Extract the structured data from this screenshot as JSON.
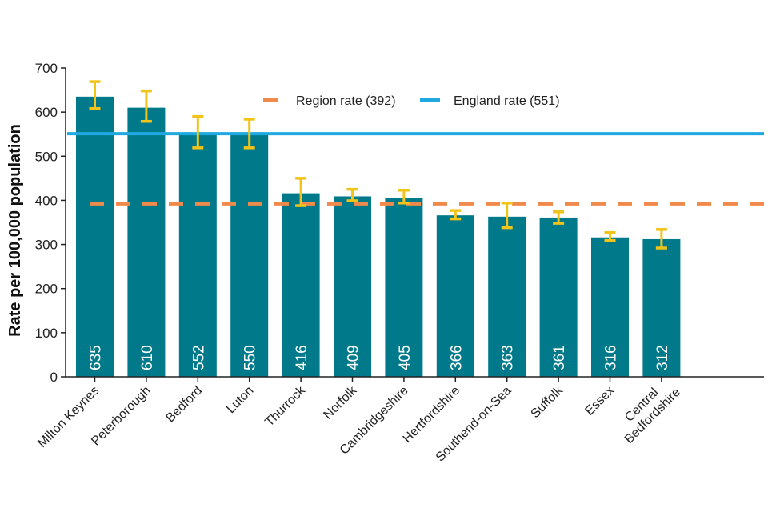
{
  "chart_data": {
    "type": "bar",
    "title": "",
    "xlabel": "",
    "ylabel": "Rate per 100,000 population",
    "ylim": [
      0,
      700
    ],
    "yticks": [
      0,
      100,
      200,
      300,
      400,
      500,
      600,
      700
    ],
    "grid": false,
    "categories": [
      "Milton Keynes",
      "Peterborough",
      "Bedford",
      "Luton",
      "Thurrock",
      "Norfolk",
      "Cambridgeshire",
      "Hertfordshire",
      "Southend-on-Sea",
      "Suffolk",
      "Essex",
      "Central Bedfordshire"
    ],
    "category_label_lines": [
      [
        "Milton Keynes"
      ],
      [
        "Peterborough"
      ],
      [
        "Bedford"
      ],
      [
        "Luton"
      ],
      [
        "Thurrock"
      ],
      [
        "Norfolk"
      ],
      [
        "Cambridgeshire"
      ],
      [
        "Hertfordshire"
      ],
      [
        "Southend-on-Sea"
      ],
      [
        "Suffolk"
      ],
      [
        "Essex"
      ],
      [
        "Central",
        "Bedfordshire"
      ]
    ],
    "values": [
      635,
      610,
      552,
      550,
      416,
      409,
      405,
      366,
      363,
      361,
      316,
      312
    ],
    "data_labels": [
      "635",
      "610",
      "552",
      "550",
      "416",
      "409",
      "405",
      "366",
      "363",
      "361",
      "316",
      "312"
    ],
    "error_bars": {
      "lower": [
        608,
        579,
        519,
        519,
        388,
        399,
        394,
        358,
        338,
        348,
        309,
        292
      ],
      "upper": [
        669,
        648,
        590,
        584,
        450,
        425,
        423,
        377,
        394,
        374,
        327,
        334
      ]
    },
    "reference_lines": [
      {
        "name": "Region rate (392)",
        "value": 392,
        "style": "dashed",
        "color": "#f08a4b"
      },
      {
        "name": "England rate (551)",
        "value": 551,
        "style": "solid",
        "color": "#1fa9e0"
      }
    ],
    "legend": {
      "placement": "top-center",
      "entries": [
        {
          "label": "Region rate (392)",
          "color": "#f08a4b",
          "style": "dashed"
        },
        {
          "label": "England rate (551)",
          "color": "#1fa9e0",
          "style": "solid"
        }
      ]
    },
    "colors": {
      "bar": "#007a8a",
      "error_bar": "#f2c318",
      "axis": "#222222"
    }
  }
}
